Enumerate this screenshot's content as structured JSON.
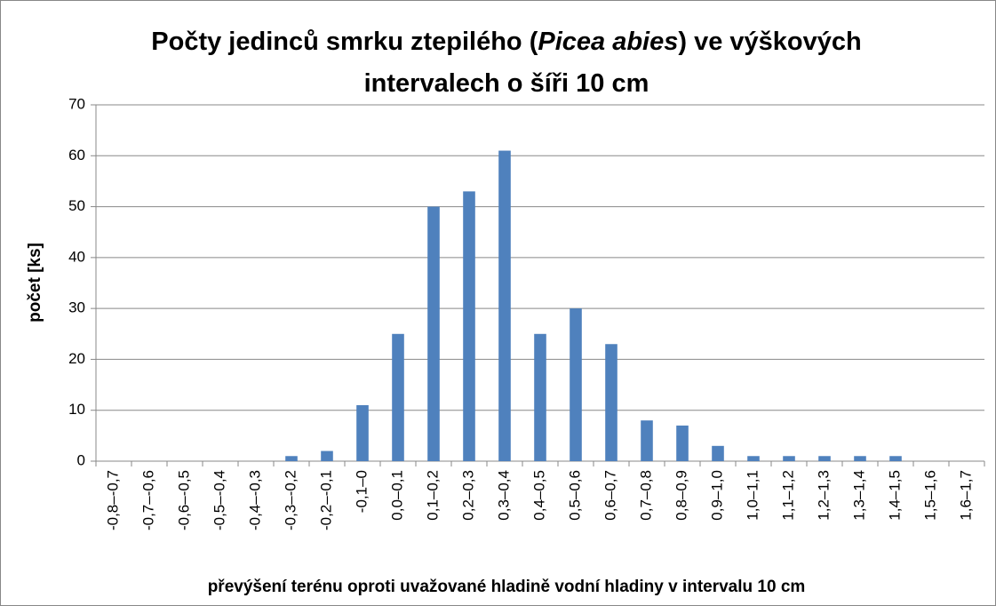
{
  "chart_data": {
    "type": "bar",
    "title": [
      "Počty jedinců smrku ztepilého (",
      "Picea abies",
      ") ve výškových",
      "intervalech o šíři 10 cm"
    ],
    "title_italic": [
      false,
      true,
      false,
      false
    ],
    "xlabel": "převýšení terénu oproti uvažované hladině vodní hladiny v intervalu 10 cm",
    "ylabel": "počet [ks]",
    "categories": [
      "-0,8–-0,7",
      "-0,7–-0,6",
      "-0,6–-0,5",
      "-0,5–-0,4",
      "-0,4–-0,3",
      "-0,3–-0,2",
      "-0,2–-0,1",
      "-0,1–0",
      "0,0–0,1",
      "0,1–0,2",
      "0,2–0,3",
      "0,3–0,4",
      "0,4–0,5",
      "0,5–0,6",
      "0,6–0,7",
      "0,7–0,8",
      "0,8–0,9",
      "0,9–1,0",
      "1,0–1,1",
      "1,1–1,2",
      "1,2–1,3",
      "1,3–1,4",
      "1,4–1,5",
      "1,5–1,6",
      "1,6–1,7"
    ],
    "values": [
      0,
      0,
      0,
      0,
      0,
      1,
      2,
      11,
      25,
      50,
      53,
      61,
      25,
      30,
      23,
      8,
      7,
      3,
      1,
      1,
      1,
      1,
      1,
      0,
      0
    ],
    "color": "#4f81bd",
    "ylim": [
      0,
      70
    ],
    "yticks": [
      0,
      10,
      20,
      30,
      40,
      50,
      60,
      70
    ],
    "grid": true
  }
}
